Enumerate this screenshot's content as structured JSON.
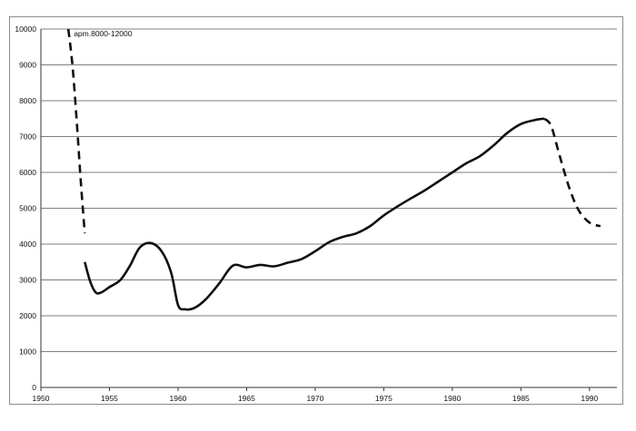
{
  "chart_data": {
    "type": "line",
    "title": "",
    "xlabel": "",
    "ylabel": "",
    "xlim": [
      1950,
      1992
    ],
    "ylim": [
      0,
      10000
    ],
    "x_ticks": [
      "1950",
      "1955",
      "1960",
      "1965",
      "1970",
      "1975",
      "1980",
      "1985",
      "1990"
    ],
    "y_ticks": [
      "0",
      "1000",
      "2000",
      "3000",
      "4000",
      "5000",
      "6000",
      "7000",
      "8000",
      "9000",
      "10000"
    ],
    "grid": "horizontal",
    "line_color": "#111111",
    "annotation": "apm.8000-12000",
    "series": [
      {
        "style": "dashed",
        "x": [
          1952.0,
          1952.3,
          1952.6,
          1952.9,
          1953.2
        ],
        "y": [
          10000,
          9000,
          7500,
          5800,
          4300
        ]
      },
      {
        "style": "solid",
        "x": [
          1953.2,
          1953.6,
          1954.0,
          1954.4,
          1955.0,
          1955.8,
          1956.5,
          1957.2,
          1958.0,
          1958.8,
          1959.5,
          1960.0,
          1960.5,
          1961.2,
          1962.0,
          1963.0,
          1964.0,
          1965.0,
          1966.0,
          1967.0,
          1968.0,
          1969.0,
          1970.0,
          1971.0,
          1972.0,
          1973.0,
          1974.0,
          1975.0,
          1976.0,
          1977.0,
          1978.0,
          1979.0,
          1980.0,
          1981.0,
          1982.0,
          1983.0,
          1984.0,
          1985.0,
          1986.0,
          1986.7
        ],
        "y": [
          3500,
          2950,
          2650,
          2650,
          2800,
          3000,
          3400,
          3900,
          4030,
          3800,
          3200,
          2300,
          2180,
          2220,
          2450,
          2900,
          3400,
          3350,
          3420,
          3380,
          3480,
          3580,
          3800,
          4050,
          4200,
          4300,
          4500,
          4800,
          5050,
          5280,
          5500,
          5750,
          6000,
          6250,
          6450,
          6750,
          7100,
          7350,
          7460,
          7500
        ]
      },
      {
        "style": "dashed",
        "x": [
          1986.7,
          1987.2,
          1987.8,
          1988.5,
          1989.2,
          1990.0,
          1990.8
        ],
        "y": [
          7500,
          7300,
          6500,
          5600,
          4950,
          4600,
          4500
        ]
      }
    ]
  }
}
